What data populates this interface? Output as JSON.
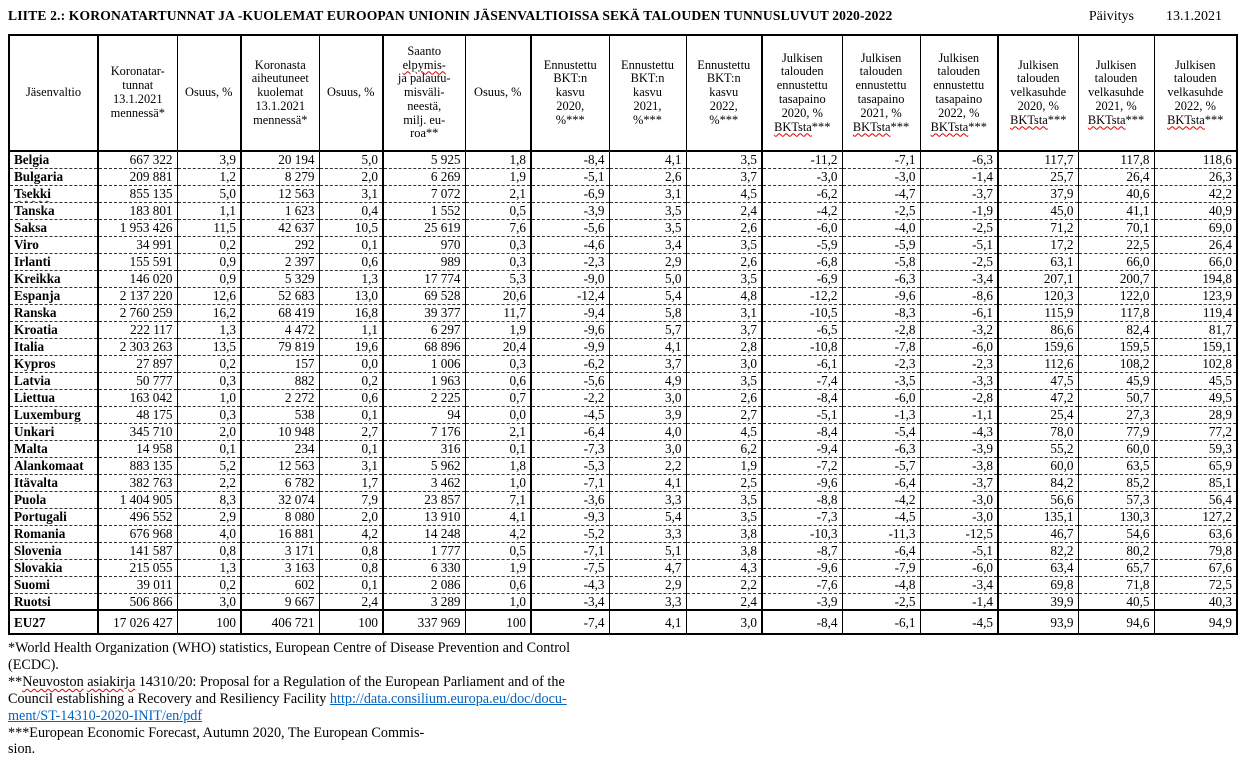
{
  "header": {
    "title": "LIITE 2.: KORONATARTUNNAT JA -KUOLEMAT EUROOPAN UNIONIN JÄSENVALTIOISSA SEKÄ TALOUDEN TUNNUSLUVUT 2020-2022",
    "update_label": "Päivitys",
    "update_date": "13.1.2021"
  },
  "spellcheck_words": [
    "elpymis-",
    "BKTsta",
    "Tsekki",
    "Neuvoston",
    "asiakirja"
  ],
  "table": {
    "columns": [
      {
        "label": "Jäsenvaltio"
      },
      {
        "label": "Koronatar-\ntunnat\n13.1.2021\nmennessä*"
      },
      {
        "label": "Osuus, %"
      },
      {
        "label": "Koronasta\naiheutuneet\nkuolemat\n13.1.2021\nmennessä*"
      },
      {
        "label": "Osuus, %"
      },
      {
        "label": "Saanto\nelpymis-\nja palautu-\nmisväli-\nneestä,\nmilj. eu-\nroa**"
      },
      {
        "label": "Osuus, %"
      },
      {
        "label": "Ennustettu\nBKT:n\nkasvu\n2020,\n%***"
      },
      {
        "label": "Ennustettu\nBKT:n\nkasvu\n2021,\n%***"
      },
      {
        "label": "Ennustettu\nBKT:n\nkasvu\n2022,\n%***"
      },
      {
        "label": "Julkisen\ntalouden\nennustettu\ntasapaino\n2020, %\nBKTsta***"
      },
      {
        "label": "Julkisen\ntalouden\nennustettu\ntasapaino\n2021, %\nBKTsta***"
      },
      {
        "label": "Julkisen\ntalouden\nennustettu\ntasapaino\n2022, %\nBKTsta***"
      },
      {
        "label": "Julkisen\ntalouden\nvelkasuhde\n2020, %\nBKTsta***"
      },
      {
        "label": "Julkisen\ntalouden\nvelkasuhde\n2021, %\nBKTsta***"
      },
      {
        "label": "Julkisen\ntalouden\nvelkasuhde\n2022, %\nBKTsta***"
      }
    ],
    "rows": [
      {
        "name": "Belgia",
        "cells": [
          "667 322",
          "3,9",
          "20 194",
          "5,0",
          "5 925",
          "1,8",
          "-8,4",
          "4,1",
          "3,5",
          "-11,2",
          "-7,1",
          "-6,3",
          "117,7",
          "117,8",
          "118,6"
        ]
      },
      {
        "name": "Bulgaria",
        "cells": [
          "209 881",
          "1,2",
          "8 279",
          "2,0",
          "6 269",
          "1,9",
          "-5,1",
          "2,6",
          "3,7",
          "-3,0",
          "-3,0",
          "-1,4",
          "25,7",
          "26,4",
          "26,3"
        ]
      },
      {
        "name": "Tsekki",
        "spell": true,
        "cells": [
          "855 135",
          "5,0",
          "12 563",
          "3,1",
          "7 072",
          "2,1",
          "-6,9",
          "3,1",
          "4,5",
          "-6,2",
          "-4,7",
          "-3,7",
          "37,9",
          "40,6",
          "42,2"
        ]
      },
      {
        "name": "Tanska",
        "cells": [
          "183 801",
          "1,1",
          "1 623",
          "0,4",
          "1 552",
          "0,5",
          "-3,9",
          "3,5",
          "2,4",
          "-4,2",
          "-2,5",
          "-1,9",
          "45,0",
          "41,1",
          "40,9"
        ]
      },
      {
        "name": "Saksa",
        "cells": [
          "1 953 426",
          "11,5",
          "42 637",
          "10,5",
          "25 619",
          "7,6",
          "-5,6",
          "3,5",
          "2,6",
          "-6,0",
          "-4,0",
          "-2,5",
          "71,2",
          "70,1",
          "69,0"
        ]
      },
      {
        "name": "Viro",
        "cells": [
          "34 991",
          "0,2",
          "292",
          "0,1",
          "970",
          "0,3",
          "-4,6",
          "3,4",
          "3,5",
          "-5,9",
          "-5,9",
          "-5,1",
          "17,2",
          "22,5",
          "26,4"
        ]
      },
      {
        "name": "Irlanti",
        "cells": [
          "155 591",
          "0,9",
          "2 397",
          "0,6",
          "989",
          "0,3",
          "-2,3",
          "2,9",
          "2,6",
          "-6,8",
          "-5,8",
          "-2,5",
          "63,1",
          "66,0",
          "66,0"
        ]
      },
      {
        "name": "Kreikka",
        "cells": [
          "146 020",
          "0,9",
          "5 329",
          "1,3",
          "17 774",
          "5,3",
          "-9,0",
          "5,0",
          "3,5",
          "-6,9",
          "-6,3",
          "-3,4",
          "207,1",
          "200,7",
          "194,8"
        ]
      },
      {
        "name": "Espanja",
        "cells": [
          "2 137 220",
          "12,6",
          "52 683",
          "13,0",
          "69 528",
          "20,6",
          "-12,4",
          "5,4",
          "4,8",
          "-12,2",
          "-9,6",
          "-8,6",
          "120,3",
          "122,0",
          "123,9"
        ]
      },
      {
        "name": "Ranska",
        "cells": [
          "2 760 259",
          "16,2",
          "68 419",
          "16,8",
          "39 377",
          "11,7",
          "-9,4",
          "5,8",
          "3,1",
          "-10,5",
          "-8,3",
          "-6,1",
          "115,9",
          "117,8",
          "119,4"
        ]
      },
      {
        "name": "Kroatia",
        "cells": [
          "222 117",
          "1,3",
          "4 472",
          "1,1",
          "6 297",
          "1,9",
          "-9,6",
          "5,7",
          "3,7",
          "-6,5",
          "-2,8",
          "-3,2",
          "86,6",
          "82,4",
          "81,7"
        ]
      },
      {
        "name": "Italia",
        "cells": [
          "2 303 263",
          "13,5",
          "79 819",
          "19,6",
          "68 896",
          "20,4",
          "-9,9",
          "4,1",
          "2,8",
          "-10,8",
          "-7,8",
          "-6,0",
          "159,6",
          "159,5",
          "159,1"
        ]
      },
      {
        "name": "Kypros",
        "cells": [
          "27 897",
          "0,2",
          "157",
          "0,0",
          "1 006",
          "0,3",
          "-6,2",
          "3,7",
          "3,0",
          "-6,1",
          "-2,3",
          "-2,3",
          "112,6",
          "108,2",
          "102,8"
        ]
      },
      {
        "name": "Latvia",
        "cells": [
          "50 777",
          "0,3",
          "882",
          "0,2",
          "1 963",
          "0,6",
          "-5,6",
          "4,9",
          "3,5",
          "-7,4",
          "-3,5",
          "-3,3",
          "47,5",
          "45,9",
          "45,5"
        ]
      },
      {
        "name": "Liettua",
        "cells": [
          "163 042",
          "1,0",
          "2 272",
          "0,6",
          "2 225",
          "0,7",
          "-2,2",
          "3,0",
          "2,6",
          "-8,4",
          "-6,0",
          "-2,8",
          "47,2",
          "50,7",
          "49,5"
        ]
      },
      {
        "name": "Luxemburg",
        "cells": [
          "48 175",
          "0,3",
          "538",
          "0,1",
          "94",
          "0,0",
          "-4,5",
          "3,9",
          "2,7",
          "-5,1",
          "-1,3",
          "-1,1",
          "25,4",
          "27,3",
          "28,9"
        ]
      },
      {
        "name": "Unkari",
        "cells": [
          "345 710",
          "2,0",
          "10 948",
          "2,7",
          "7 176",
          "2,1",
          "-6,4",
          "4,0",
          "4,5",
          "-8,4",
          "-5,4",
          "-4,3",
          "78,0",
          "77,9",
          "77,2"
        ]
      },
      {
        "name": "Malta",
        "cells": [
          "14 958",
          "0,1",
          "234",
          "0,1",
          "316",
          "0,1",
          "-7,3",
          "3,0",
          "6,2",
          "-9,4",
          "-6,3",
          "-3,9",
          "55,2",
          "60,0",
          "59,3"
        ]
      },
      {
        "name": "Alankomaat",
        "cells": [
          "883 135",
          "5,2",
          "12 563",
          "3,1",
          "5 962",
          "1,8",
          "-5,3",
          "2,2",
          "1,9",
          "-7,2",
          "-5,7",
          "-3,8",
          "60,0",
          "63,5",
          "65,9"
        ]
      },
      {
        "name": "Itävalta",
        "cells": [
          "382 763",
          "2,2",
          "6 782",
          "1,7",
          "3 462",
          "1,0",
          "-7,1",
          "4,1",
          "2,5",
          "-9,6",
          "-6,4",
          "-3,7",
          "84,2",
          "85,2",
          "85,1"
        ]
      },
      {
        "name": "Puola",
        "cells": [
          "1 404 905",
          "8,3",
          "32 074",
          "7,9",
          "23 857",
          "7,1",
          "-3,6",
          "3,3",
          "3,5",
          "-8,8",
          "-4,2",
          "-3,0",
          "56,6",
          "57,3",
          "56,4"
        ]
      },
      {
        "name": "Portugali",
        "cells": [
          "496 552",
          "2,9",
          "8 080",
          "2,0",
          "13 910",
          "4,1",
          "-9,3",
          "5,4",
          "3,5",
          "-7,3",
          "-4,5",
          "-3,0",
          "135,1",
          "130,3",
          "127,2"
        ]
      },
      {
        "name": "Romania",
        "cells": [
          "676 968",
          "4,0",
          "16 881",
          "4,2",
          "14 248",
          "4,2",
          "-5,2",
          "3,3",
          "3,8",
          "-10,3",
          "-11,3",
          "-12,5",
          "46,7",
          "54,6",
          "63,6"
        ]
      },
      {
        "name": "Slovenia",
        "cells": [
          "141 587",
          "0,8",
          "3 171",
          "0,8",
          "1 777",
          "0,5",
          "-7,1",
          "5,1",
          "3,8",
          "-8,7",
          "-6,4",
          "-5,1",
          "82,2",
          "80,2",
          "79,8"
        ]
      },
      {
        "name": "Slovakia",
        "cells": [
          "215 055",
          "1,3",
          "3 163",
          "0,8",
          "6 330",
          "1,9",
          "-7,5",
          "4,7",
          "4,3",
          "-9,6",
          "-7,9",
          "-6,0",
          "63,4",
          "65,7",
          "67,6"
        ]
      },
      {
        "name": "Suomi",
        "cells": [
          "39 011",
          "0,2",
          "602",
          "0,1",
          "2 086",
          "0,6",
          "-4,3",
          "2,9",
          "2,2",
          "-7,6",
          "-4,8",
          "-3,4",
          "69,8",
          "71,8",
          "72,5"
        ]
      },
      {
        "name": "Ruotsi",
        "cells": [
          "506 866",
          "3,0",
          "9 667",
          "2,4",
          "3 289",
          "1,0",
          "-3,4",
          "3,3",
          "2,4",
          "-3,9",
          "-2,5",
          "-1,4",
          "39,9",
          "40,5",
          "40,3"
        ]
      }
    ],
    "total": {
      "name": "EU27",
      "cells": [
        "17 026 427",
        "100",
        "406 721",
        "100",
        "337 969",
        "100",
        "-7,4",
        "4,1",
        "3,0",
        "-8,4",
        "-6,1",
        "-4,5",
        "93,9",
        "94,6",
        "94,9"
      ]
    }
  },
  "footnotes": {
    "who_line1": "*World Health Organization (WHO) statistics, European Centre of Disease Prevention and Control",
    "who_line2": "(ECDC).",
    "council_line1": "**Neuvoston asiakirja 14310/20: Proposal for a Regulation of the European Parliament and of the",
    "council_line2_text": "Council establishing a Recovery and Resiliency Facility ",
    "council_link_line1": "http://data.consilium.europa.eu/doc/docu-",
    "council_link_line2": "ment/ST-14310-2020-INIT/en/pdf",
    "forecast_line1": "***European Economic Forecast, Autumn 2020, The European Commis-",
    "forecast_line2": "sion."
  }
}
